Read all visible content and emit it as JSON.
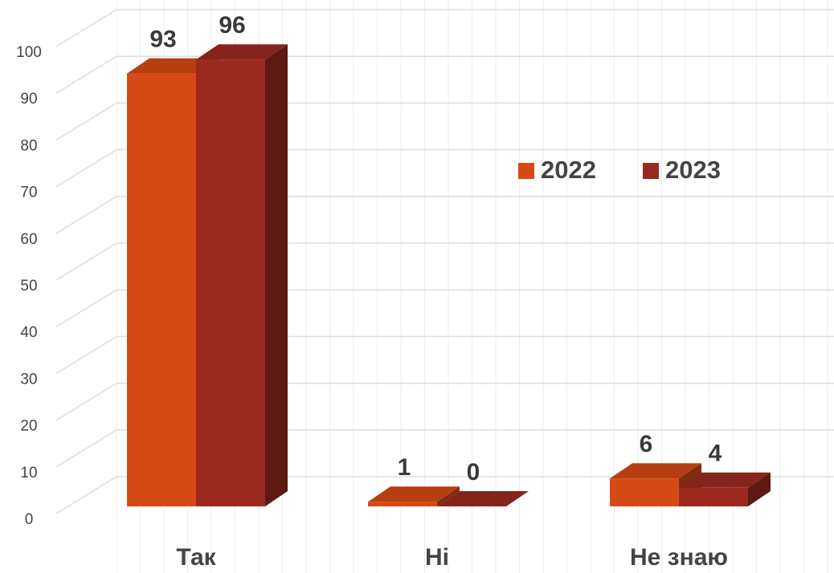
{
  "chart_data": {
    "type": "bar3d",
    "categories": [
      "Так",
      "Ні",
      "Не знаю"
    ],
    "series": [
      {
        "name": "2022",
        "color": "#d64a15",
        "values": [
          93,
          1,
          6
        ]
      },
      {
        "name": "2023",
        "color": "#9b2a1e",
        "values": [
          96,
          0,
          4
        ]
      }
    ],
    "ylim": [
      0,
      100
    ],
    "yticks": [
      0,
      10,
      20,
      30,
      40,
      50,
      60,
      70,
      80,
      90,
      100
    ],
    "grid": true,
    "legend": "right"
  }
}
